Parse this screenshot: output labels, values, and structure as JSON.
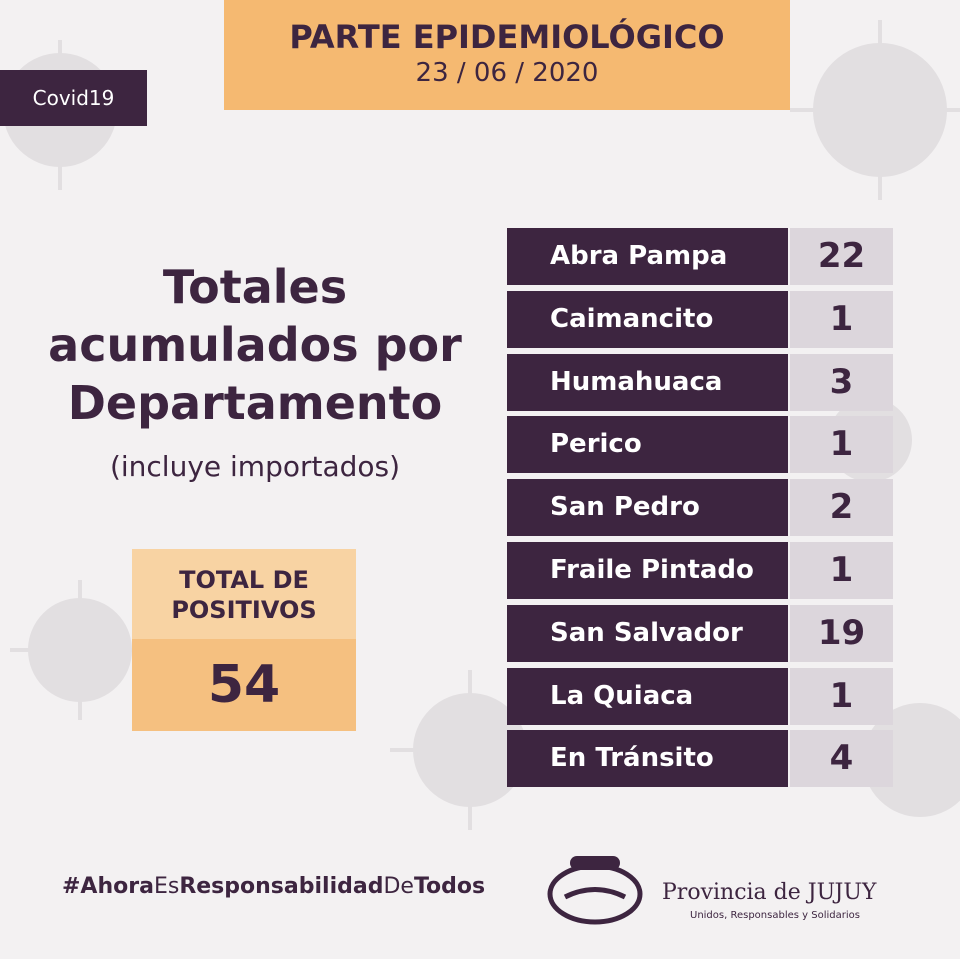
{
  "header": {
    "title": "PARTE EPIDEMIOLÓGICO",
    "date": "23 / 06 / 2020"
  },
  "tag": "Covid19",
  "heading": {
    "lines": [
      "Totales",
      "acumulados por",
      "Departamento"
    ],
    "subtitle": "(incluye importados)"
  },
  "total": {
    "label_lines": [
      "TOTAL DE",
      "POSITIVOS"
    ],
    "value": 54
  },
  "table": {
    "rows": [
      [
        "Abra Pampa",
        22
      ],
      [
        "Caimancito",
        1
      ],
      [
        "Humahuaca",
        3
      ],
      [
        "Perico",
        1
      ],
      [
        "San Pedro",
        2
      ],
      [
        "Fraile Pintado",
        1
      ],
      [
        "San Salvador",
        19
      ],
      [
        "La Quiaca",
        1
      ],
      [
        "En Tránsito",
        4
      ]
    ]
  },
  "footer": {
    "hashtag_parts": [
      "#Ahora",
      "Es",
      "Responsabilidad",
      "De",
      "Todos"
    ],
    "logo_name": "Provincia de JUJUY",
    "logo_motto": "Unidos, Responsables y Solidarios"
  }
}
